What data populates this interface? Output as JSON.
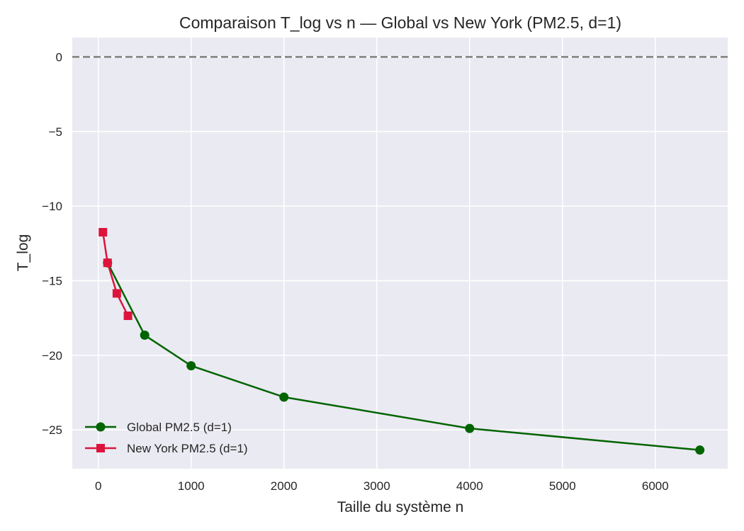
{
  "chart_data": {
    "type": "line",
    "title": "Comparaison T_log vs n — Global vs New York (PM2.5, d=1)",
    "xlabel": "Taille du système n",
    "ylabel": "T_log",
    "xlim": [
      -280,
      6780
    ],
    "ylim": [
      -27.6,
      1.3
    ],
    "xticks": [
      0,
      1000,
      2000,
      3000,
      4000,
      5000,
      6000
    ],
    "xtick_labels": [
      "0",
      "1000",
      "2000",
      "3000",
      "4000",
      "5000",
      "6000"
    ],
    "yticks": [
      0,
      -5,
      -10,
      -15,
      -20,
      -25
    ],
    "ytick_labels": [
      "0",
      "−5",
      "−10",
      "−15",
      "−20",
      "−25"
    ],
    "grid": true,
    "legend_position": "lower-left",
    "reference_line": {
      "y": 0,
      "style": "dashed",
      "color": "#808080"
    },
    "series": [
      {
        "name": "Global PM2.5 (d=1)",
        "color": "#006400",
        "marker": "circle",
        "x": [
          100,
          500,
          1000,
          2000,
          4000,
          6480
        ],
        "y": [
          -13.8,
          -18.65,
          -20.7,
          -22.8,
          -24.9,
          -26.35
        ]
      },
      {
        "name": "New York PM2.5 (d=1)",
        "color": "#dc143c",
        "marker": "square",
        "x": [
          50,
          100,
          200,
          320
        ],
        "y": [
          -11.75,
          -13.8,
          -15.85,
          -17.35
        ]
      }
    ]
  }
}
